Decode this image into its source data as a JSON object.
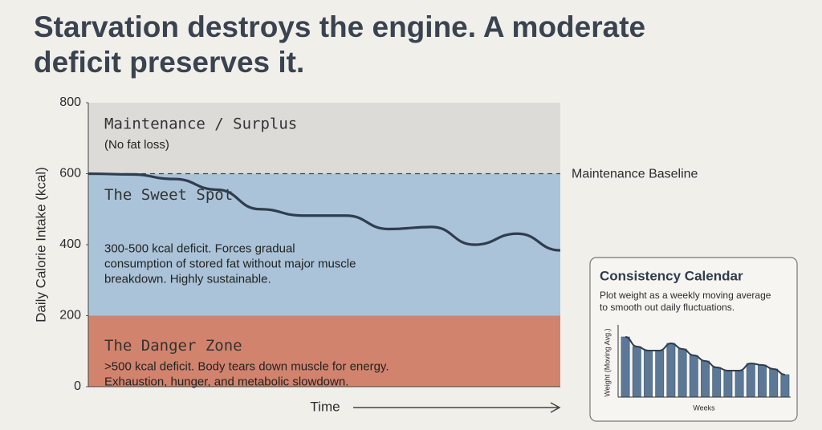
{
  "header": {
    "title_lines": [
      "Starvation destroys the engine. A moderate",
      "deficit preserves it."
    ]
  },
  "chart_data": [
    {
      "type": "line",
      "y_label": "Daily Calorie Intake (kcal)",
      "x_label": "Time",
      "ylim": [
        0,
        800
      ],
      "yticks": [
        0,
        200,
        400,
        600,
        800
      ],
      "categories": [
        null,
        null,
        null,
        null,
        null,
        null,
        null,
        null,
        null,
        null,
        null,
        null
      ],
      "series": [
        {
          "color": "#2f3d4f",
          "values": [
            600,
            598,
            585,
            555,
            500,
            482,
            482,
            444,
            450,
            400,
            431,
            384
          ]
        }
      ],
      "bands": [
        {
          "from": 600,
          "to": 800,
          "color": "#dcdbd8",
          "label": "Maintenance / Surplus",
          "description": [
            "(No fat loss)"
          ]
        },
        {
          "from": 200,
          "to": 600,
          "color": "#aac3d8",
          "label": "The Sweet Spot",
          "description": [
            "300-500 kcal deficit. Forces gradual",
            "consumption of stored fat without major muscle",
            "breakdown. Highly sustainable."
          ]
        },
        {
          "from": 0,
          "to": 200,
          "color": "#d2836d",
          "label": "The Danger Zone",
          "description": [
            ">500 kcal deficit. Body tears down muscle for energy.",
            "Exhaustion, hunger, and metabolic slowdown."
          ]
        }
      ],
      "reference_line": {
        "value": 600,
        "label": "Maintenance Baseline"
      }
    },
    {
      "type": "bar",
      "title": "Consistency Calendar",
      "subtitle_lines": [
        "Plot weight as a weekly moving average",
        "to smooth out daily fluctuations."
      ],
      "y_label": "Weight (Moving Avg.)",
      "x_label": "Weeks",
      "ylim": [
        0,
        85
      ],
      "color": "#5b7896",
      "line_color": "#2f3d4f",
      "values": [
        75,
        63,
        58,
        58,
        67,
        60,
        52,
        45,
        37,
        33,
        33,
        42,
        40,
        35,
        28
      ]
    }
  ]
}
